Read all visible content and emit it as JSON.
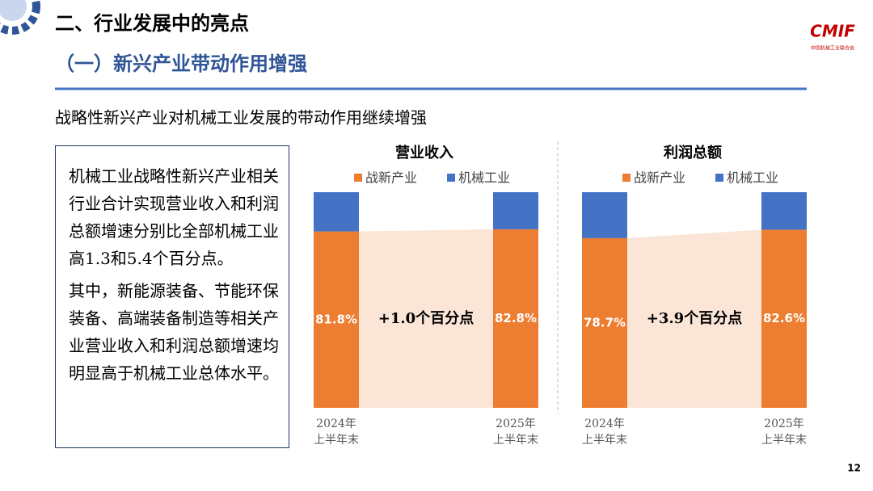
{
  "header": {
    "title": "二、行业发展中的亮点",
    "subtitle": "（一）新兴产业带动作用增强",
    "lead": "战略性新兴产业对机械工业发展的带动作用继续增强",
    "logo": "CMIF",
    "logo_caption": "中国机械工业联合会"
  },
  "text_box": {
    "paragraphs": [
      "机械工业战略性新兴产业相关行业合计实现营业收入和利润总额增速分别比全部机械工业高1.3和5.4个百分点。",
      "其中，新能源装备、节能环保装备、高端装备制造等相关产业营业收入和利润总额增速均明显高于机械工业总体水平。"
    ]
  },
  "chart_data": [
    {
      "type": "bar",
      "stacked": true,
      "title": "营业收入",
      "categories": [
        [
          "2024年",
          "上半年末"
        ],
        [
          "2025年",
          "上半年末"
        ]
      ],
      "series": [
        {
          "name": "战新产业",
          "color": "#ed7d31",
          "values": [
            81.8,
            82.8
          ],
          "value_labels": [
            "81.8%",
            "82.8%"
          ]
        },
        {
          "name": "机械工业",
          "color": "#4472c4",
          "values": [
            18.2,
            17.2
          ]
        }
      ],
      "ylim": [
        0,
        100
      ],
      "annotation": "+1.0个百分点",
      "area_color": "#fbe5d6"
    },
    {
      "type": "bar",
      "stacked": true,
      "title": "利润总额",
      "categories": [
        [
          "2024年",
          "上半年末"
        ],
        [
          "2025年",
          "上半年末"
        ]
      ],
      "series": [
        {
          "name": "战新产业",
          "color": "#ed7d31",
          "values": [
            78.7,
            82.6
          ],
          "value_labels": [
            "78.7%",
            "82.6%"
          ]
        },
        {
          "name": "机械工业",
          "color": "#4472c4",
          "values": [
            21.3,
            17.4
          ]
        }
      ],
      "ylim": [
        0,
        100
      ],
      "annotation": "+3.9个百分点",
      "area_color": "#fbe5d6"
    }
  ],
  "page_number": "12"
}
